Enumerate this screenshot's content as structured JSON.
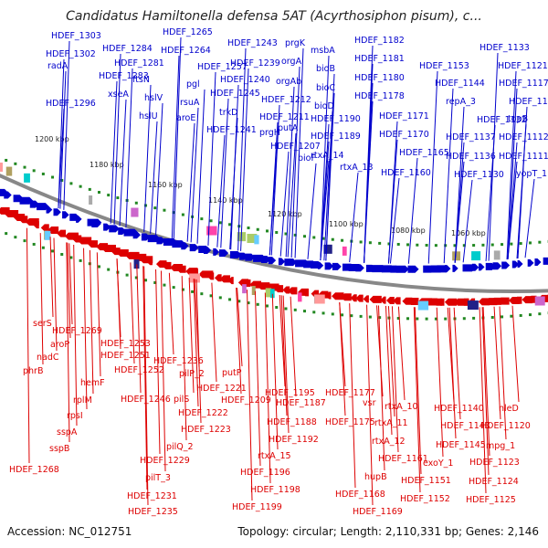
{
  "title": "Candidatus Hamiltonella defensa 5AT (Acyrthosiphon pisum), c...",
  "accession": "Accession: NC_012751",
  "summary": "Topology: circular; Length: 2,110,331 bp; Genes: 2,146",
  "colors": {
    "forward": "#0000cc",
    "reverse": "#dd0000",
    "backbone": "#888888",
    "tick": "#228822"
  },
  "kbp_ticks": [
    "1200 kbp",
    "1180 kbp",
    "1160 kbp",
    "1140 kbp",
    "1120 kbp",
    "1100 kbp",
    "1080 kbp",
    "1060 kbp"
  ],
  "top_labels": [
    "HDEF_1303",
    "HDEF_1302",
    "radA",
    "HDEF_1296",
    "HDEF_1284",
    "HDEF_1283",
    "xseA",
    "HDEF_1281",
    "ftsN",
    "hslV",
    "hslU",
    "HDEF_1265",
    "HDEF_1264",
    "pgl",
    "rsuA",
    "aroE",
    "HDEF_1257",
    "HDEF_1243",
    "prgK",
    "HDEF_1239",
    "orgA",
    "HDEF_1240",
    "orgAb",
    "HDEF_1245",
    "HDEF_1212",
    "trkD",
    "HDEF_1211",
    "prgH",
    "putA",
    "HDEF_1241",
    "HDEF_1207",
    "msbA",
    "bioB",
    "bioC",
    "bioD",
    "HDEF_1190",
    "HDEF_1189",
    "bioF",
    "rtxA_14",
    "rtxA_13",
    "HDEF_1182",
    "HDEF_1181",
    "HDEF_1180",
    "HDEF_1178",
    "HDEF_1171",
    "HDEF_1170",
    "HDEF_1165",
    "HDEF_1160",
    "HDEF_1133",
    "HDEF_1153",
    "HDEF_1121",
    "HDEF_1144",
    "HDEF_1117",
    "repA_3",
    "HDEF_1116",
    "HDEF_1132",
    "topB",
    "HDEF_1137",
    "HDEF_1112",
    "HDEF_1136",
    "HDEF_1111",
    "HDEF_1130",
    "yopT_1"
  ],
  "bottom_labels": [
    "serS",
    "HDEF_1269",
    "aroP",
    "nadC",
    "phrB",
    "HDEF_1253",
    "HDEF_1251",
    "HDEF_1252",
    "hemF",
    "rplM",
    "rpsI",
    "sspA",
    "sspB",
    "HDEF_1268",
    "HDEF_1236",
    "pilP_2",
    "HDEF_1246",
    "pilS",
    "HDEF_1221",
    "putP",
    "HDEF_1209",
    "HDEF_1222",
    "HDEF_1223",
    "pilQ_2",
    "HDEF_1229",
    "pilT_3",
    "HDEF_1231",
    "HDEF_1235",
    "HDEF_1195",
    "HDEF_1187",
    "HDEF_1188",
    "HDEF_1192",
    "rtxA_15",
    "HDEF_1196",
    "HDEF_1198",
    "HDEF_1199",
    "HDEF_1177",
    "vsr",
    "HDEF_1175",
    "rtxA_10",
    "rtxA_11",
    "rtxA_12",
    "HDEF_1161",
    "hupB",
    "HDEF_1168",
    "HDEF_1169",
    "HDEF_1140",
    "HDEF_1143",
    "HDEF_1145",
    "exoY_1",
    "HDEF_1151",
    "HDEF_1152",
    "nleD",
    "HDEF_1120",
    "mpg_1",
    "HDEF_1123",
    "HDEF_1124",
    "HDEF_1125"
  ]
}
